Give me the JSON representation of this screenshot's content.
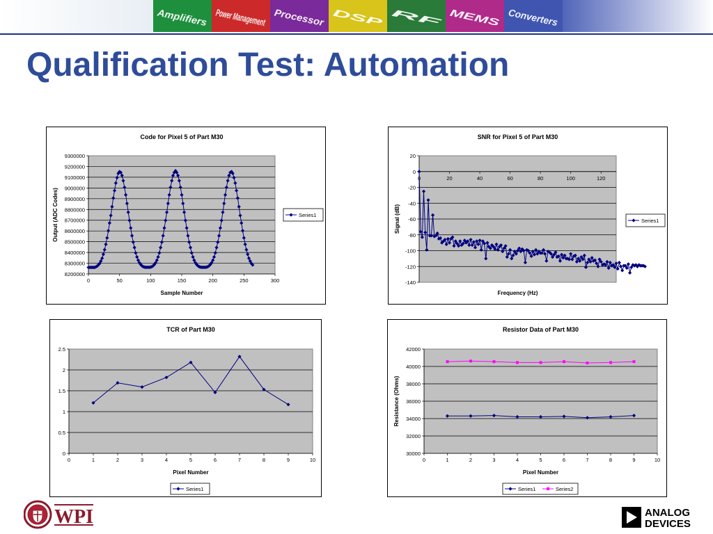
{
  "slide": {
    "title": "Qualification Test: Automation",
    "banner_labels": [
      "Amplifiers",
      "Power Management",
      "Processor",
      "DSP",
      "RF",
      "MEMS",
      "Converters"
    ],
    "logos": {
      "left": "WPI",
      "right_line1": "ANALOG",
      "right_line2": "DEVICES"
    },
    "colors": {
      "title": "#2e4c99",
      "banner_line": "#1b2f84",
      "plot_area": "#c0c0c0",
      "series1": "#000080",
      "series2": "#ff00ff"
    }
  },
  "chart_data": [
    {
      "id": "code",
      "type": "line",
      "title": "Code for Pixel 5 of Part M30",
      "xlabel": "Sample Number",
      "ylabel": "Output (ADC Codes)",
      "xlim": [
        0,
        300
      ],
      "ylim": [
        8200000,
        9300000
      ],
      "xticks": [
        0,
        50,
        100,
        150,
        200,
        250,
        300
      ],
      "yticks": [
        8200000,
        8300000,
        8400000,
        8500000,
        8600000,
        8700000,
        8800000,
        8900000,
        9000000,
        9100000,
        9200000,
        9300000
      ],
      "grid": "horizontal",
      "legend": "right",
      "marker": "diamond",
      "series": [
        {
          "name": "Series1",
          "x_start": 0,
          "x_step": 2,
          "values": [
            8261000,
            8261000,
            8261000,
            8261000,
            8261000,
            8261000,
            8266000,
            8273000,
            8284000,
            8298000,
            8320000,
            8346000,
            8383000,
            8426000,
            8476000,
            8536000,
            8602000,
            8674000,
            8744000,
            8826000,
            8906000,
            8976000,
            9046000,
            9096000,
            9136000,
            9152000,
            9144000,
            9116000,
            9068000,
            9006000,
            8936000,
            8856000,
            8774000,
            8698000,
            8628000,
            8556000,
            8496000,
            8446000,
            8396000,
            8358000,
            8328000,
            8304000,
            8288000,
            8276000,
            8268000,
            8264000,
            8262000,
            8262000,
            8262000,
            8262000,
            8264000,
            8268000,
            8276000,
            8288000,
            8304000,
            8328000,
            8358000,
            8396000,
            8446000,
            8496000,
            8556000,
            8628000,
            8698000,
            8774000,
            8856000,
            8936000,
            9006000,
            9068000,
            9116000,
            9144000,
            9160000,
            9144000,
            9116000,
            9068000,
            9006000,
            8936000,
            8856000,
            8774000,
            8698000,
            8628000,
            8556000,
            8496000,
            8446000,
            8396000,
            8358000,
            8328000,
            8304000,
            8288000,
            8276000,
            8268000,
            8264000,
            8262000,
            8262000,
            8262000,
            8262000,
            8264000,
            8268000,
            8276000,
            8288000,
            8304000,
            8328000,
            8358000,
            8396000,
            8446000,
            8496000,
            8556000,
            8628000,
            8698000,
            8774000,
            8856000,
            8936000,
            9006000,
            9068000,
            9116000,
            9144000,
            9152000,
            9136000,
            9096000,
            9046000,
            8976000,
            8906000,
            8826000,
            8744000,
            8674000,
            8602000,
            8536000,
            8476000,
            8426000,
            8383000,
            8346000,
            8320000,
            8298000,
            8284000
          ]
        }
      ]
    },
    {
      "id": "snr",
      "type": "line",
      "title": "SNR for Pixel 5 of Part M30",
      "xlabel": "Frequency (Hz)",
      "ylabel": "Signal (dB)",
      "xlim": [
        0,
        130
      ],
      "ylim": [
        -140,
        20
      ],
      "xticks": [
        0,
        20,
        40,
        60,
        80,
        100,
        120
      ],
      "yticks": [
        -140,
        -120,
        -100,
        -80,
        -60,
        -40,
        -20,
        0,
        20
      ],
      "x_axis_at": 0,
      "grid": "horizontal",
      "legend": "right",
      "marker": "diamond",
      "series": [
        {
          "name": "Series1",
          "x_start": 0,
          "x_step": 1,
          "values": [
            0,
            -76,
            -83,
            -25,
            -77,
            -99,
            -36,
            -81,
            -81,
            -55,
            -82,
            -81,
            -78,
            -85,
            -84,
            -90,
            -88,
            -86,
            -92,
            -85,
            -90,
            -85,
            -83,
            -94,
            -88,
            -91,
            -94,
            -88,
            -93,
            -91,
            -87,
            -90,
            -88,
            -93,
            -86,
            -93,
            -89,
            -96,
            -88,
            -92,
            -87,
            -99,
            -88,
            -91,
            -110,
            -90,
            -95,
            -97,
            -93,
            -95,
            -98,
            -92,
            -99,
            -95,
            -93,
            -101,
            -97,
            -94,
            -108,
            -104,
            -99,
            -110,
            -106,
            -101,
            -104,
            -100,
            -97,
            -101,
            -98,
            -100,
            -115,
            -99,
            -100,
            -103,
            -107,
            -101,
            -105,
            -99,
            -104,
            -101,
            -103,
            -103,
            -99,
            -104,
            -113,
            -101,
            -102,
            -104,
            -108,
            -105,
            -102,
            -108,
            -107,
            -113,
            -105,
            -109,
            -106,
            -110,
            -110,
            -111,
            -104,
            -111,
            -107,
            -106,
            -114,
            -110,
            -113,
            -108,
            -111,
            -106,
            -121,
            -115,
            -111,
            -114,
            -109,
            -113,
            -112,
            -116,
            -120,
            -111,
            -114,
            -118,
            -117,
            -118,
            -114,
            -122,
            -115,
            -119,
            -118,
            -121,
            -116,
            -123,
            -115,
            -120,
            -125,
            -119,
            -119,
            -122,
            -117,
            -128,
            -121,
            -118,
            -119,
            -118,
            -120,
            -118,
            -119,
            -119,
            -119,
            -120
          ]
        }
      ]
    },
    {
      "id": "tcr",
      "type": "line",
      "title": "TCR of Part M30",
      "xlabel": "Pixel Number",
      "ylabel": "",
      "xlim": [
        0,
        10
      ],
      "ylim": [
        0,
        2.5
      ],
      "xticks": [
        0,
        1,
        2,
        3,
        4,
        5,
        6,
        7,
        8,
        9,
        10
      ],
      "yticks": [
        0,
        0.5,
        1,
        1.5,
        2,
        2.5
      ],
      "grid": "horizontal",
      "legend": "bottom",
      "marker": "diamond",
      "categories": [
        1,
        2,
        3,
        4,
        5,
        6,
        7,
        8,
        9
      ],
      "series": [
        {
          "name": "Series1",
          "values": [
            1.21,
            1.69,
            1.59,
            1.82,
            2.18,
            1.46,
            2.32,
            1.53,
            1.17
          ]
        }
      ]
    },
    {
      "id": "resistor",
      "type": "line",
      "title": "Resistor Data of Part M30",
      "xlabel": "Pixel Number",
      "ylabel": "Resistance (Ohms)",
      "xlim": [
        0,
        10
      ],
      "ylim": [
        30000,
        42000
      ],
      "xticks": [
        0,
        1,
        2,
        3,
        4,
        5,
        6,
        7,
        8,
        9,
        10
      ],
      "yticks": [
        30000,
        32000,
        34000,
        36000,
        38000,
        40000,
        42000
      ],
      "grid": "horizontal",
      "legend": "bottom",
      "categories": [
        1,
        2,
        3,
        4,
        5,
        6,
        7,
        8,
        9
      ],
      "series": [
        {
          "name": "Series1",
          "marker": "diamond",
          "values": [
            34300,
            34300,
            34350,
            34200,
            34200,
            34250,
            34100,
            34200,
            34350
          ]
        },
        {
          "name": "Series2",
          "marker": "square",
          "values": [
            40550,
            40620,
            40550,
            40450,
            40450,
            40550,
            40400,
            40450,
            40550
          ]
        }
      ]
    }
  ]
}
